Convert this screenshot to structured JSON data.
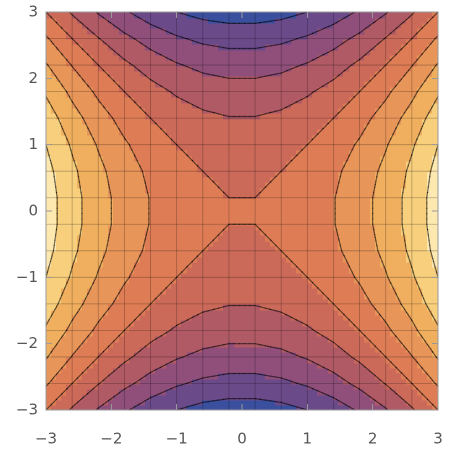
{
  "chart_data": {
    "type": "contour",
    "x": [
      -3,
      -2.6,
      -2.2,
      -1.8,
      -1.4,
      -1,
      -0.6,
      -0.2,
      0.2,
      0.6,
      1,
      1.4,
      1.8,
      2.2,
      2.6,
      3
    ],
    "y": [
      -3,
      -2.6,
      -2.2,
      -1.8,
      -1.4,
      -1,
      -0.6,
      -0.2,
      0.2,
      0.6,
      1,
      1.4,
      1.8,
      2.2,
      2.6,
      3
    ],
    "z": [
      [
        0,
        -2.24,
        -4.16,
        -5.76,
        -7.04,
        -8,
        -8.64,
        -8.96,
        -8.96,
        -8.64,
        -8,
        -7.04,
        -5.76,
        -4.16,
        -2.24,
        0
      ],
      [
        2.24,
        0,
        -1.92,
        -3.52,
        -4.8,
        -5.76,
        -6.4,
        -6.72,
        -6.72,
        -6.4,
        -5.76,
        -4.8,
        -3.52,
        -1.92,
        0,
        2.24
      ],
      [
        4.16,
        1.92,
        0,
        -1.6,
        -2.88,
        -3.84,
        -4.48,
        -4.8,
        -4.8,
        -4.48,
        -3.84,
        -2.88,
        -1.6,
        0,
        1.92,
        4.16
      ],
      [
        5.76,
        3.52,
        1.6,
        0,
        -1.28,
        -2.24,
        -2.88,
        -3.2,
        -3.2,
        -2.88,
        -2.24,
        -1.28,
        0,
        1.6,
        3.52,
        5.76
      ],
      [
        7.04,
        4.8,
        2.88,
        1.28,
        0,
        -0.96,
        -1.6,
        -1.92,
        -1.92,
        -1.6,
        -0.96,
        0,
        1.28,
        2.88,
        4.8,
        7.04
      ],
      [
        8,
        5.76,
        3.84,
        2.24,
        0.96,
        0,
        -0.64,
        -0.96,
        -0.96,
        -0.64,
        0,
        0.96,
        2.24,
        3.84,
        5.76,
        8
      ],
      [
        8.64,
        6.4,
        4.48,
        2.88,
        1.6,
        0.64,
        0,
        -0.32,
        -0.32,
        0,
        0.64,
        1.6,
        2.88,
        4.48,
        6.4,
        8.64
      ],
      [
        8.96,
        6.72,
        4.8,
        3.2,
        1.92,
        0.96,
        0.32,
        0,
        0,
        0.32,
        0.96,
        1.92,
        3.2,
        4.8,
        6.72,
        8.96
      ],
      [
        8.96,
        6.72,
        4.8,
        3.2,
        1.92,
        0.96,
        0.32,
        0,
        0,
        0.32,
        0.96,
        1.92,
        3.2,
        4.8,
        6.72,
        8.96
      ],
      [
        8.64,
        6.4,
        4.48,
        2.88,
        1.6,
        0.64,
        0,
        -0.32,
        -0.32,
        0,
        0.64,
        1.6,
        2.88,
        4.48,
        6.4,
        8.64
      ],
      [
        8,
        5.76,
        3.84,
        2.24,
        0.96,
        0,
        -0.64,
        -0.96,
        -0.96,
        -0.64,
        0,
        0.96,
        2.24,
        3.84,
        5.76,
        8
      ],
      [
        7.04,
        4.8,
        2.88,
        1.28,
        0,
        -0.96,
        -1.6,
        -1.92,
        -1.92,
        -1.6,
        -0.96,
        0,
        1.28,
        2.88,
        4.8,
        7.04
      ],
      [
        5.76,
        3.52,
        1.6,
        0,
        -1.28,
        -2.24,
        -2.88,
        -3.2,
        -3.2,
        -2.88,
        -2.24,
        -1.28,
        0,
        1.6,
        3.52,
        5.76
      ],
      [
        4.16,
        1.92,
        0,
        -1.6,
        -2.88,
        -3.84,
        -4.48,
        -4.8,
        -4.8,
        -4.48,
        -3.84,
        -2.88,
        -1.6,
        0,
        1.92,
        4.16
      ],
      [
        2.24,
        0,
        -1.92,
        -3.52,
        -4.8,
        -5.76,
        -6.4,
        -6.72,
        -6.72,
        -6.4,
        -5.76,
        -4.8,
        -3.52,
        -1.92,
        0,
        2.24
      ],
      [
        0,
        -2.24,
        -4.16,
        -5.76,
        -7.04,
        -8,
        -8.64,
        -8.96,
        -8.96,
        -8.64,
        -8,
        -7.04,
        -5.76,
        -4.16,
        -2.24,
        0
      ]
    ],
    "levels": [
      -8,
      -6,
      -4,
      -2,
      0,
      2,
      4,
      6,
      8
    ],
    "zlim": [
      -9,
      9
    ],
    "colors": [
      "#3a4f9e",
      "#6b4a8a",
      "#8f4f7a",
      "#b05a66",
      "#cc6a5a",
      "#de7d55",
      "#e8955a",
      "#f0af5f",
      "#f7cf7d",
      "#fde8b0"
    ],
    "mesh": true,
    "xlim": [
      -3,
      3
    ],
    "ylim": [
      -3,
      3
    ],
    "xticks": [
      {
        "value": -3,
        "label": "−3"
      },
      {
        "value": -2,
        "label": "−2"
      },
      {
        "value": -1,
        "label": "−1"
      },
      0,
      1,
      2,
      3
    ],
    "yticks": [
      {
        "value": -3,
        "label": "−3"
      },
      {
        "value": -2,
        "label": "−2"
      },
      {
        "value": -1,
        "label": "−1"
      },
      0,
      1,
      2,
      3
    ]
  }
}
